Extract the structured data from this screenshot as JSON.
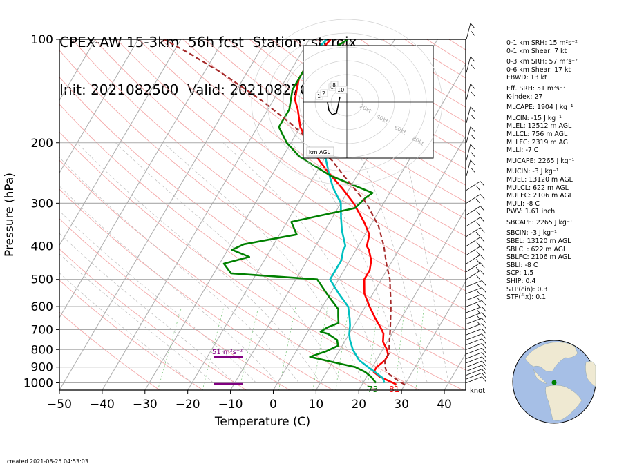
{
  "title": {
    "line1": "CPEX-AW 15-3km  56h fcst  Station: stcroix",
    "line2": "Init: 2021082500  Valid: 202108270800 UTC"
  },
  "chart_data": {
    "type": "skew-t",
    "xlabel": "Temperature (C)",
    "ylabel": "Pressure (hPa)",
    "xlim": [
      -50,
      45
    ],
    "ylim": [
      1050,
      100
    ],
    "y_log": true,
    "x_ticks": [
      -50,
      -40,
      -30,
      -20,
      -10,
      0,
      10,
      20,
      30,
      40
    ],
    "y_ticks": [
      100,
      200,
      300,
      400,
      500,
      600,
      700,
      800,
      900,
      1000
    ],
    "grid": true,
    "series": [
      {
        "role": "temperature",
        "color": "#ff0000",
        "points": [
          [
            1012,
            28
          ],
          [
            1000,
            27
          ],
          [
            960,
            23
          ],
          [
            930,
            21
          ],
          [
            900,
            21
          ],
          [
            860,
            22
          ],
          [
            830,
            22
          ],
          [
            800,
            21
          ],
          [
            760,
            19
          ],
          [
            720,
            18
          ],
          [
            700,
            17
          ],
          [
            650,
            14
          ],
          [
            600,
            11
          ],
          [
            550,
            8
          ],
          [
            500,
            6
          ],
          [
            470,
            6
          ],
          [
            440,
            5
          ],
          [
            410,
            3
          ],
          [
            400,
            2
          ],
          [
            370,
            1
          ],
          [
            340,
            -2
          ],
          [
            300,
            -7
          ],
          [
            270,
            -12
          ],
          [
            245,
            -17
          ],
          [
            225,
            -21
          ],
          [
            200,
            -26
          ],
          [
            180,
            -30
          ],
          [
            160,
            -33
          ],
          [
            150,
            -35
          ],
          [
            140,
            -36
          ],
          [
            130,
            -37
          ],
          [
            120,
            -37
          ],
          [
            110,
            -36
          ],
          [
            100,
            -35
          ]
        ]
      },
      {
        "role": "wet-bulb",
        "color": "#00c0c0",
        "points": [
          [
            1000,
            25
          ],
          [
            970,
            24
          ],
          [
            940,
            22
          ],
          [
            900,
            19
          ],
          [
            860,
            16
          ],
          [
            820,
            14
          ],
          [
            800,
            13
          ],
          [
            750,
            11
          ],
          [
            720,
            10
          ],
          [
            680,
            9
          ],
          [
            650,
            8
          ],
          [
            600,
            6
          ],
          [
            550,
            2
          ],
          [
            500,
            -2
          ],
          [
            470,
            -2
          ],
          [
            440,
            -2
          ],
          [
            410,
            -3
          ],
          [
            400,
            -3
          ],
          [
            360,
            -6
          ],
          [
            330,
            -8
          ],
          [
            300,
            -10
          ],
          [
            270,
            -14
          ],
          [
            245,
            -17
          ],
          [
            220,
            -20
          ],
          [
            200,
            -23
          ],
          [
            180,
            -27
          ],
          [
            160,
            -31
          ],
          [
            150,
            -33
          ],
          [
            140,
            -34
          ],
          [
            130,
            -36
          ],
          [
            120,
            -37
          ],
          [
            110,
            -37
          ],
          [
            100,
            -36
          ]
        ]
      },
      {
        "role": "dewpoint",
        "color": "#008000",
        "points": [
          [
            1000,
            23
          ],
          [
            960,
            21
          ],
          [
            930,
            19
          ],
          [
            900,
            16
          ],
          [
            870,
            10
          ],
          [
            840,
            4
          ],
          [
            810,
            7
          ],
          [
            780,
            9
          ],
          [
            750,
            8
          ],
          [
            720,
            5
          ],
          [
            710,
            3
          ],
          [
            690,
            4
          ],
          [
            670,
            6
          ],
          [
            640,
            5
          ],
          [
            610,
            4
          ],
          [
            560,
            0
          ],
          [
            500,
            -5
          ],
          [
            480,
            -26
          ],
          [
            450,
            -29
          ],
          [
            430,
            -24
          ],
          [
            410,
            -29
          ],
          [
            395,
            -27
          ],
          [
            370,
            -16
          ],
          [
            340,
            -19
          ],
          [
            310,
            -6
          ],
          [
            290,
            -5
          ],
          [
            280,
            -4
          ],
          [
            250,
            -16
          ],
          [
            220,
            -26
          ],
          [
            200,
            -31
          ],
          [
            180,
            -35
          ],
          [
            160,
            -35
          ],
          [
            140,
            -37
          ],
          [
            120,
            -37
          ],
          [
            100,
            -31
          ]
        ]
      },
      {
        "role": "parcel",
        "color": "#a52a2a",
        "points": [
          [
            1012,
            30
          ],
          [
            1000,
            29
          ],
          [
            960,
            26
          ],
          [
            930,
            24
          ],
          [
            900,
            23
          ],
          [
            860,
            22
          ],
          [
            820,
            22
          ],
          [
            780,
            21
          ],
          [
            700,
            19
          ],
          [
            600,
            16
          ],
          [
            500,
            12
          ],
          [
            450,
            9
          ],
          [
            400,
            6
          ],
          [
            350,
            2
          ],
          [
            300,
            -4
          ],
          [
            250,
            -13
          ],
          [
            225,
            -18
          ],
          [
            200,
            -25
          ],
          [
            175,
            -33
          ],
          [
            150,
            -43
          ],
          [
            125,
            -56
          ],
          [
            110,
            -66
          ],
          [
            100,
            -74
          ]
        ]
      }
    ],
    "surface_labels": {
      "dewpoint": "73",
      "temperature": "81"
    },
    "srh_bar_label": "51 m²s⁻²",
    "hodograph": {
      "ring_labels": [
        "20kt",
        "40kt",
        "60kt",
        "80kt"
      ],
      "height_labels": [
        "1",
        "2",
        "6",
        "8",
        "10"
      ],
      "legend": "km AGL"
    },
    "barb_unit": "knot"
  },
  "stats": [
    {
      "text": "0-1 km SRH: 15 m²s⁻²",
      "gap": false
    },
    {
      "text": "0-1 km Shear: 7 kt",
      "gap": false
    },
    {
      "text": "0-3 km SRH: 57 m²s⁻²",
      "gap": true
    },
    {
      "text": "0-6 km Shear: 17 kt",
      "gap": false
    },
    {
      "text": "EBWD: 13 kt",
      "gap": false
    },
    {
      "text": "Eff. SRH: 51 m²s⁻²",
      "gap": true
    },
    {
      "text": "K-index: 27",
      "gap": false
    },
    {
      "text": "MLCAPE: 1904 J kg⁻¹",
      "gap": true
    },
    {
      "text": "MLCIN: -15 J kg⁻¹",
      "gap": true
    },
    {
      "text": "MLEL: 12512 m AGL",
      "gap": false
    },
    {
      "text": "MLLCL: 756 m AGL",
      "gap": false
    },
    {
      "text": "MLLFC: 2319 m AGL",
      "gap": false
    },
    {
      "text": "MLLI: -7 C",
      "gap": false
    },
    {
      "text": "MUCAPE: 2265 J kg⁻¹",
      "gap": true
    },
    {
      "text": "MUCIN: -3 J kg⁻¹",
      "gap": true
    },
    {
      "text": "MUEL: 13120 m AGL",
      "gap": false
    },
    {
      "text": "MULCL: 622 m AGL",
      "gap": false
    },
    {
      "text": "MULFC: 2106 m AGL",
      "gap": false
    },
    {
      "text": "MULI: -8 C",
      "gap": false
    },
    {
      "text": "PWV: 1.61 inch",
      "gap": false
    },
    {
      "text": "SBCAPE: 2265 J kg⁻¹",
      "gap": true
    },
    {
      "text": "SBCIN: -3 J kg⁻¹",
      "gap": true
    },
    {
      "text": "SBEL: 13120 m AGL",
      "gap": false
    },
    {
      "text": "SBLCL: 622 m AGL",
      "gap": false
    },
    {
      "text": "SBLFC: 2106 m AGL",
      "gap": false
    },
    {
      "text": "SBLI: -8 C",
      "gap": false
    },
    {
      "text": "SCP: 1.5",
      "gap": false
    },
    {
      "text": "SHIP: 0.4",
      "gap": false
    },
    {
      "text": "STP(cin): 0.3",
      "gap": false
    },
    {
      "text": "STP(fix): 0.1",
      "gap": false
    }
  ],
  "created": "created 2021-08-25 04:53:03"
}
